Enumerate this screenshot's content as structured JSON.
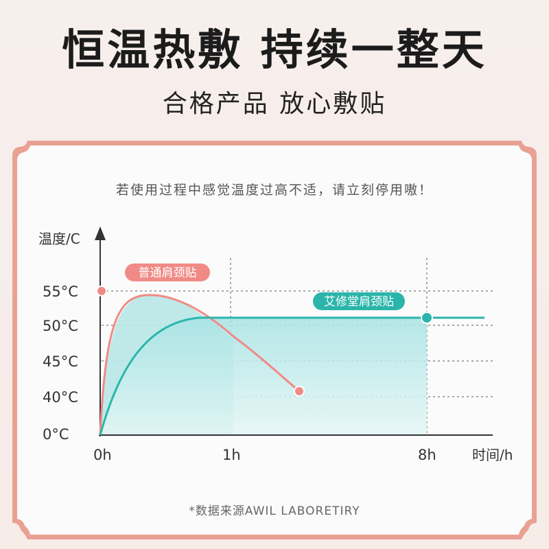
{
  "header": {
    "title": "恒温热敷  持续一整天",
    "subtitle": "合格产品  放心敷贴"
  },
  "notice": "若使用过程中感觉温度过高不适，请立刻停用嗷！",
  "footnote": "*数据来源AWIL LABORETIRY",
  "colors": {
    "pink": "#f08a86",
    "teal": "#2bb5aa",
    "fill_teal": "#a9e2e4",
    "frame": "#e79a8a"
  },
  "chart_data": {
    "type": "line",
    "xlabel": "时间/h",
    "ylabel": "温度/C",
    "x_ticks": [
      "0h",
      "1h",
      "8h"
    ],
    "y_ticks": [
      "0°C",
      "40°C",
      "45°C",
      "50°C",
      "55°C"
    ],
    "series": [
      {
        "name": "普通肩颈贴",
        "color": "#f08a86",
        "points": [
          {
            "x": "0h",
            "y": 0
          },
          {
            "x": "0.1h",
            "y": 45
          },
          {
            "x": "0.25h",
            "y": 53
          },
          {
            "x": "0.4h",
            "y": 54.5
          },
          {
            "x": "0.6h",
            "y": 53
          },
          {
            "x": "1h",
            "y": 49
          },
          {
            "x": "1.5h",
            "y": 44
          },
          {
            "x": "2h",
            "y": 41
          }
        ]
      },
      {
        "name": "艾修堂肩颈贴",
        "color": "#2bb5aa",
        "points": [
          {
            "x": "0h",
            "y": 0
          },
          {
            "x": "0.2h",
            "y": 40
          },
          {
            "x": "0.4h",
            "y": 48
          },
          {
            "x": "0.7h",
            "y": 51
          },
          {
            "x": "1h",
            "y": 51
          },
          {
            "x": "8h",
            "y": 51
          },
          {
            "x": ">8h",
            "y": 51
          }
        ]
      }
    ],
    "grid": true
  }
}
